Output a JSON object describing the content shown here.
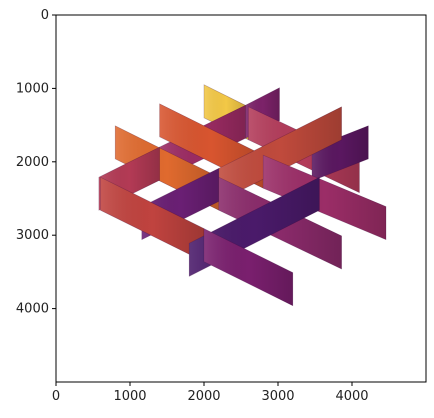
{
  "chart_data": {
    "type": "image",
    "description_note": "",
    "colormap": "inferno",
    "xlim": [
      0,
      5000
    ],
    "ylim": [
      5000,
      0
    ],
    "y_inverted": true,
    "xticks": [
      0,
      1000,
      2000,
      3000,
      4000
    ],
    "yticks": [
      0,
      1000,
      2000,
      3000,
      4000
    ],
    "xtick_labels": [
      "0",
      "1000",
      "2000",
      "3000",
      "4000"
    ],
    "ytick_labels": [
      "0",
      "1000",
      "2000",
      "3000",
      "4000"
    ],
    "title": "",
    "xlabel": "",
    "ylabel": "",
    "grid": false,
    "scene": {
      "kind": "isometric-lattice-of-slices",
      "diag_a": {
        "direction": [
          1,
          0.5
        ],
        "height": 450,
        "panels": [
          {
            "start": [
              600,
              2660
            ],
            "end": [
              2000,
              3360
            ],
            "color": "#c0433f"
          },
          {
            "start": [
              2000,
              3360
            ],
            "end": [
              3200,
              3960
            ],
            "color": "#7a1f6e"
          },
          {
            "start": [
              800,
              1960
            ],
            "end": [
              2200,
              2660
            ],
            "color": "#e06a2e"
          },
          {
            "start": [
              2200,
              2660
            ],
            "end": [
              3860,
              3460
            ],
            "color": "#8a2a6a"
          },
          {
            "start": [
              1400,
              1660
            ],
            "end": [
              2800,
              2360
            ],
            "color": "#d8552f"
          },
          {
            "start": [
              2800,
              2360
            ],
            "end": [
              4460,
              3060
            ],
            "color": "#9b2d67"
          },
          {
            "start": [
              2000,
              1400
            ],
            "end": [
              2600,
              1700
            ],
            "color": "#f3c846"
          },
          {
            "start": [
              2600,
              1700
            ],
            "end": [
              4100,
              2420
            ],
            "color": "#b33b5a"
          }
        ]
      },
      "diag_b": {
        "direction": [
          1,
          -0.5
        ],
        "height": 450,
        "panels": [
          {
            "start": [
              1800,
              3560
            ],
            "end": [
              3560,
              2660
            ],
            "color": "#4a1a6a"
          },
          {
            "start": [
              1160,
              3060
            ],
            "end": [
              2200,
              2540
            ],
            "color": "#6a1f74"
          },
          {
            "start": [
              2200,
              2540
            ],
            "end": [
              3860,
              1700
            ],
            "color": "#c04a3c"
          },
          {
            "start": [
              580,
              2660
            ],
            "end": [
              1400,
              2250
            ],
            "color": "#b33a55"
          },
          {
            "start": [
              1400,
              2250
            ],
            "end": [
              2560,
              1680
            ],
            "color": "#9c2b63"
          },
          {
            "start": [
              2560,
              1680
            ],
            "end": [
              3020,
              1440
            ],
            "color": "#7c2269"
          },
          {
            "start": [
              3460,
              2260
            ],
            "end": [
              4220,
              1960
            ],
            "color": "#5a1760"
          }
        ]
      }
    }
  }
}
